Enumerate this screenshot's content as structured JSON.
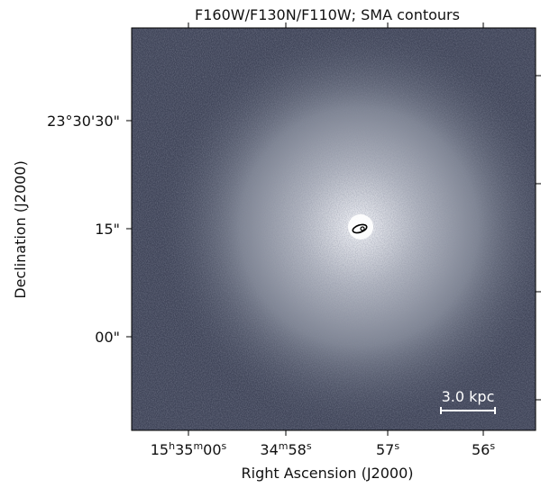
{
  "figure": {
    "title": "F160W/F130N/F110W; SMA contours",
    "x_label": "Right Ascension (J2000)",
    "y_label": "Declination (J2000)",
    "x_tick_labels": [
      "15h35m00s",
      "34m58s",
      "57s",
      "56s"
    ],
    "y_tick_labels": [
      "23°30'30\"",
      "15\"",
      "00\""
    ],
    "scale_bar_label": "3.0 kpc"
  }
}
